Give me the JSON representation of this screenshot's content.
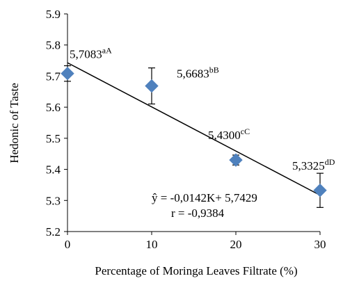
{
  "chart_data": {
    "type": "scatter",
    "xlabel": "Percentage of Moringa Leaves Filtrate (%)",
    "ylabel": "Hedonic of Taste",
    "xlim": [
      0,
      30
    ],
    "ylim": [
      5.2,
      5.9
    ],
    "x_ticks": [
      "0",
      "10",
      "20",
      "30"
    ],
    "y_ticks": [
      "5.2",
      "5.3",
      "5.4",
      "5.5",
      "5.6",
      "5.7",
      "5.8",
      "5.9"
    ],
    "grid": false,
    "marker_color": "#4F81BD",
    "points": [
      {
        "x": 0,
        "y": 5.7083,
        "err": 0.025,
        "label": "5,7083",
        "sup": "aA"
      },
      {
        "x": 10,
        "y": 5.6683,
        "err": 0.058,
        "label": "5,6683",
        "sup": "bB"
      },
      {
        "x": 20,
        "y": 5.43,
        "err": 0.016,
        "label": "5,4300",
        "sup": "cC"
      },
      {
        "x": 30,
        "y": 5.3325,
        "err": 0.055,
        "label": "5,3325",
        "sup": "dD"
      }
    ],
    "trendline": {
      "slope": -0.0142,
      "intercept": 5.7429
    },
    "equation": "ŷ = -0,0142K+ 5,7429",
    "r_text": "r = -0,9384"
  }
}
